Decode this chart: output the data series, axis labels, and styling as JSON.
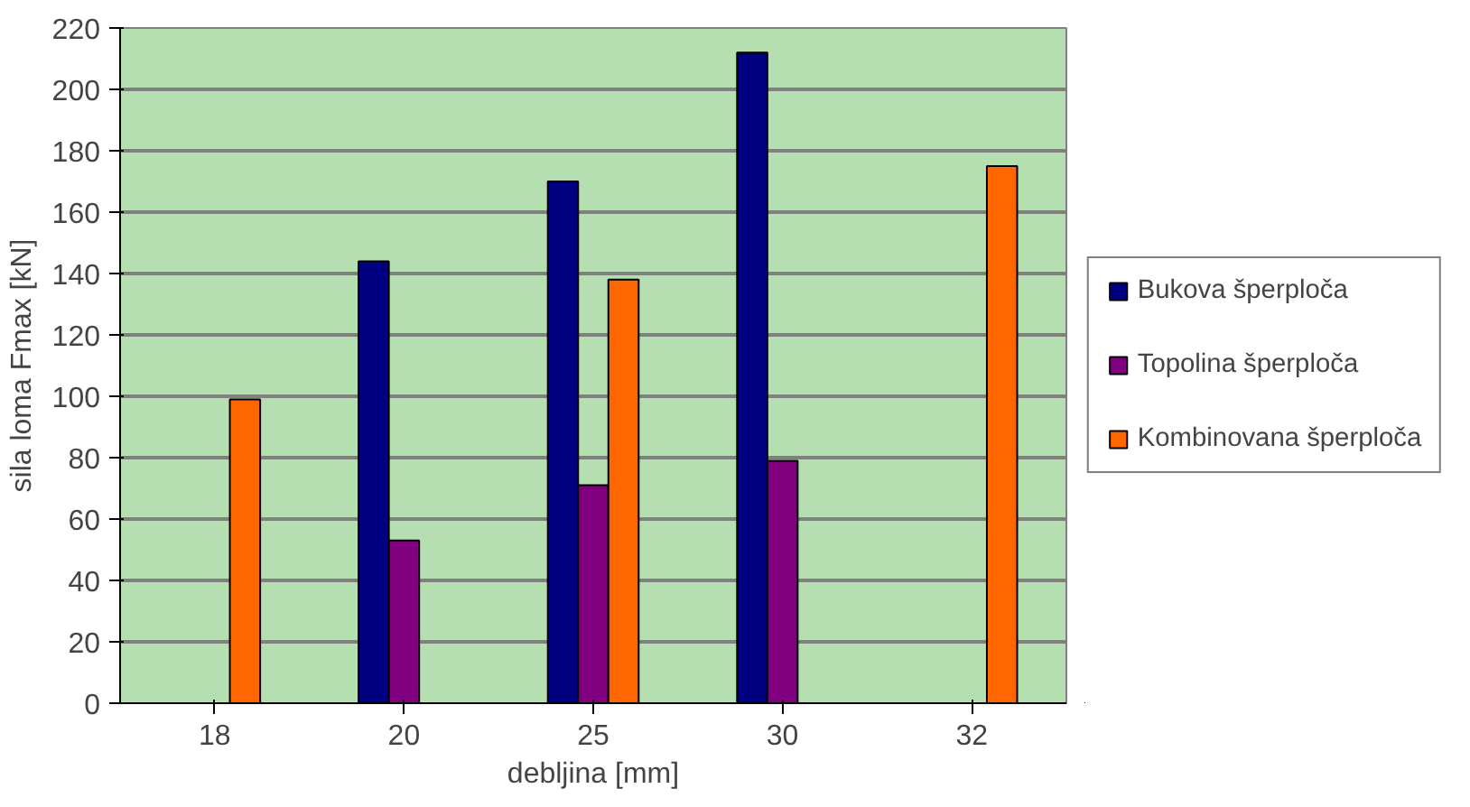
{
  "chart_data": {
    "type": "bar",
    "xlabel": "debljina [mm]",
    "ylabel": "sila loma Fmax [kN]",
    "categories": [
      "18",
      "20",
      "25",
      "30",
      "32"
    ],
    "series": [
      {
        "name": "Bukova šperploča",
        "color": "#000080",
        "values": [
          null,
          144,
          170,
          212,
          null
        ]
      },
      {
        "name": "Topolina šperploča",
        "color": "#800080",
        "values": [
          null,
          53,
          71,
          79,
          null
        ]
      },
      {
        "name": "Kombinovana šperploča",
        "color": "#ff6600",
        "values": [
          99,
          null,
          138,
          null,
          175
        ]
      }
    ],
    "ylim": [
      0,
      220
    ],
    "yticks": [
      0,
      20,
      40,
      60,
      80,
      100,
      120,
      140,
      160,
      180,
      200,
      220
    ],
    "grid": "y",
    "legend": "right"
  }
}
